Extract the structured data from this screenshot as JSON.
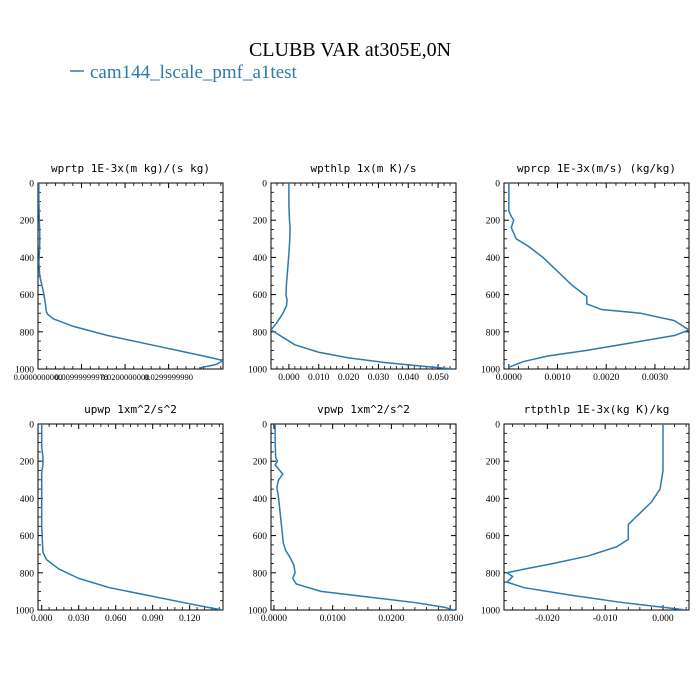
{
  "figure": {
    "title": "CLUBB VAR at305E,0N",
    "legend_entry": "cam144_lscale_pmf_a1test",
    "line_color": "#2a7ab0"
  },
  "chart_data": [
    {
      "type": "line",
      "title": "wprtp  1E-3x(m kg)/(s kg)",
      "xlim": [
        0.0,
        0.0425
      ],
      "ylim": [
        1000,
        0
      ],
      "x_ticks": [
        0.0,
        0.01,
        0.02,
        0.03
      ],
      "x_tick_labels": [
        "0.0000000000",
        "0.00999999978",
        "0.0200000000",
        "0.0299999990"
      ],
      "y_ticks": [
        0,
        200,
        400,
        600,
        800,
        1000
      ],
      "y_tick_labels": [
        "0",
        "200",
        "400",
        "600",
        "800",
        "1000"
      ],
      "series": [
        {
          "x": [
            0.0002,
            0.0002,
            0.0003,
            0.0004,
            0.0004,
            0.0003,
            0.0002,
            0.0003,
            0.0004,
            0.0008,
            0.0012,
            0.0015,
            0.0017,
            0.0018,
            0.0019,
            0.0022,
            0.0035,
            0.008,
            0.016,
            0.026,
            0.034,
            0.04,
            0.0425,
            0.041,
            0.037
          ],
          "y": [
            0,
            100,
            200,
            260,
            320,
            380,
            430,
            460,
            500,
            540,
            580,
            620,
            650,
            670,
            690,
            705,
            730,
            770,
            820,
            870,
            910,
            940,
            955,
            975,
            995
          ]
        }
      ]
    },
    {
      "type": "line",
      "title": "wpthlp  1x(m K)/s",
      "xlim": [
        -0.006,
        0.056
      ],
      "ylim": [
        1000,
        0
      ],
      "x_ticks": [
        0.0,
        0.01,
        0.02,
        0.03,
        0.04,
        0.05
      ],
      "x_tick_labels": [
        "0.000",
        "0.010",
        "0.020",
        "0.030",
        "0.040",
        "0.050"
      ],
      "y_ticks": [
        0,
        200,
        400,
        600,
        800,
        1000
      ],
      "y_tick_labels": [
        "0",
        "200",
        "400",
        "600",
        "800",
        "1000"
      ],
      "series": [
        {
          "x": [
            0.0,
            0.0,
            0.0002,
            0.0004,
            0.0003,
            0.0,
            -0.0004,
            -0.0008,
            -0.001,
            -0.0006,
            -0.0008,
            -0.002,
            -0.004,
            -0.006,
            -0.004,
            0.002,
            0.01,
            0.02,
            0.032,
            0.045,
            0.055
          ],
          "y": [
            0,
            120,
            200,
            240,
            300,
            380,
            460,
            540,
            600,
            630,
            660,
            700,
            750,
            790,
            810,
            870,
            910,
            940,
            965,
            985,
            1000
          ]
        }
      ]
    },
    {
      "type": "line",
      "title": "wprcp  1E-3x(m/s) (kg/kg)",
      "xlim": [
        -0.0001,
        0.0037
      ],
      "ylim": [
        1000,
        0
      ],
      "x_ticks": [
        0.0,
        0.001,
        0.002,
        0.003
      ],
      "x_tick_labels": [
        "0.0000",
        "0.0010",
        "0.0020",
        "0.0030"
      ],
      "y_ticks": [
        0,
        200,
        400,
        600,
        800,
        1000
      ],
      "y_tick_labels": [
        "0",
        "200",
        "400",
        "600",
        "800",
        "1000"
      ],
      "series": [
        {
          "x": [
            0.0,
            0.0,
            0.0,
            5e-05,
            0.0001,
            5e-05,
            0.00015,
            0.0004,
            0.0007,
            0.0009,
            0.0011,
            0.0013,
            0.0015,
            0.0016,
            0.0016,
            0.0019,
            0.0027,
            0.0034,
            0.0037,
            0.0034,
            0.0025,
            0.0016,
            0.0008,
            0.0003,
            0.0
          ],
          "y": [
            0,
            100,
            150,
            180,
            200,
            240,
            300,
            340,
            400,
            450,
            500,
            550,
            590,
            610,
            650,
            680,
            700,
            740,
            790,
            820,
            860,
            900,
            930,
            960,
            990
          ]
        }
      ]
    },
    {
      "type": "line",
      "title": "upwp  1xm^2/s^2",
      "xlim": [
        -0.003,
        0.147
      ],
      "ylim": [
        1000,
        0
      ],
      "x_ticks": [
        0.0,
        0.03,
        0.06,
        0.09,
        0.12
      ],
      "x_tick_labels": [
        "0.000",
        "0.030",
        "0.060",
        "0.090",
        "0.120"
      ],
      "y_ticks": [
        0,
        200,
        400,
        600,
        800,
        1000
      ],
      "y_tick_labels": [
        "0",
        "200",
        "400",
        "600",
        "800",
        "1000"
      ],
      "series": [
        {
          "x": [
            0.0,
            0.0,
            0.001,
            0.001,
            0.0,
            0.0,
            0.0,
            0.001,
            0.004,
            0.014,
            0.03,
            0.055,
            0.085,
            0.115,
            0.138,
            0.147
          ],
          "y": [
            0,
            120,
            180,
            220,
            260,
            400,
            550,
            690,
            730,
            780,
            830,
            880,
            920,
            960,
            990,
            1000
          ]
        }
      ]
    },
    {
      "type": "line",
      "title": "vpwp  1xm^2/s^2",
      "xlim": [
        -0.0005,
        0.031
      ],
      "ylim": [
        1000,
        0
      ],
      "x_ticks": [
        0.0,
        0.01,
        0.02,
        0.03
      ],
      "x_tick_labels": [
        "0.0000",
        "0.0100",
        "0.0200",
        "0.0300"
      ],
      "y_ticks": [
        0,
        200,
        400,
        600,
        800,
        1000
      ],
      "y_tick_labels": [
        "0",
        "200",
        "400",
        "600",
        "800",
        "1000"
      ],
      "series": [
        {
          "x": [
            0.0002,
            0.0002,
            0.0003,
            0.0006,
            0.0002,
            0.001,
            0.0015,
            0.0008,
            0.0005,
            0.0008,
            0.001,
            0.0012,
            0.0014,
            0.0016,
            0.002,
            0.0028,
            0.0034,
            0.0036,
            0.0032,
            0.0038,
            0.008,
            0.016,
            0.024,
            0.029,
            0.0305
          ],
          "y": [
            0,
            100,
            180,
            200,
            220,
            250,
            270,
            300,
            340,
            400,
            460,
            520,
            580,
            640,
            680,
            720,
            760,
            800,
            830,
            860,
            900,
            930,
            960,
            985,
            1000
          ]
        }
      ]
    },
    {
      "type": "line",
      "title": "rtpthlp  1E-3x(kg K)/kg",
      "xlim": [
        -0.0275,
        0.0045
      ],
      "ylim": [
        1000,
        0
      ],
      "x_ticks": [
        -0.02,
        -0.01,
        0.0
      ],
      "x_tick_labels": [
        "-0.020",
        "-0.010",
        "0.000"
      ],
      "y_ticks": [
        0,
        200,
        400,
        600,
        800,
        1000
      ],
      "y_tick_labels": [
        "0",
        "200",
        "400",
        "600",
        "800",
        "1000"
      ],
      "series": [
        {
          "x": [
            0.0,
            0.0,
            0.0,
            -0.0005,
            -0.002,
            -0.004,
            -0.006,
            -0.006,
            -0.008,
            -0.013,
            -0.019,
            -0.024,
            -0.027,
            -0.026,
            -0.027,
            -0.024,
            -0.016,
            -0.007,
            0.0,
            0.004
          ],
          "y": [
            0,
            100,
            250,
            350,
            420,
            480,
            540,
            620,
            660,
            710,
            750,
            780,
            800,
            820,
            850,
            880,
            920,
            960,
            985,
            1000
          ]
        }
      ]
    }
  ]
}
